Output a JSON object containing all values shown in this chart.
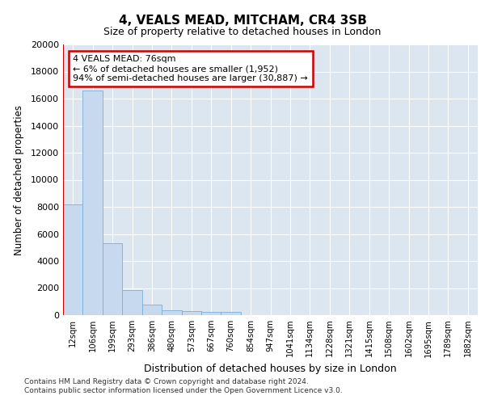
{
  "title": "4, VEALS MEAD, MITCHAM, CR4 3SB",
  "subtitle": "Size of property relative to detached houses in London",
  "xlabel": "Distribution of detached houses by size in London",
  "ylabel": "Number of detached properties",
  "categories": [
    "12sqm",
    "106sqm",
    "199sqm",
    "293sqm",
    "386sqm",
    "480sqm",
    "573sqm",
    "667sqm",
    "760sqm",
    "854sqm",
    "947sqm",
    "1041sqm",
    "1134sqm",
    "1228sqm",
    "1321sqm",
    "1415sqm",
    "1508sqm",
    "1602sqm",
    "1695sqm",
    "1789sqm",
    "1882sqm"
  ],
  "values": [
    8200,
    16600,
    5300,
    1850,
    750,
    370,
    270,
    230,
    210,
    0,
    0,
    0,
    0,
    0,
    0,
    0,
    0,
    0,
    0,
    0,
    0
  ],
  "bar_color": "#c6d9ee",
  "bar_edge_color": "#7aadd4",
  "marker_line_color": "#cc0000",
  "annotation_title": "4 VEALS MEAD: 76sqm",
  "annotation_line1": "← 6% of detached houses are smaller (1,952)",
  "annotation_line2": "94% of semi-detached houses are larger (30,887) →",
  "annotation_box_color": "#ffffff",
  "annotation_box_edge": "#cc0000",
  "ylim": [
    0,
    20000
  ],
  "yticks": [
    0,
    2000,
    4000,
    6000,
    8000,
    10000,
    12000,
    14000,
    16000,
    18000,
    20000
  ],
  "bg_color": "#dce6f0",
  "footer_line1": "Contains HM Land Registry data © Crown copyright and database right 2024.",
  "footer_line2": "Contains public sector information licensed under the Open Government Licence v3.0."
}
